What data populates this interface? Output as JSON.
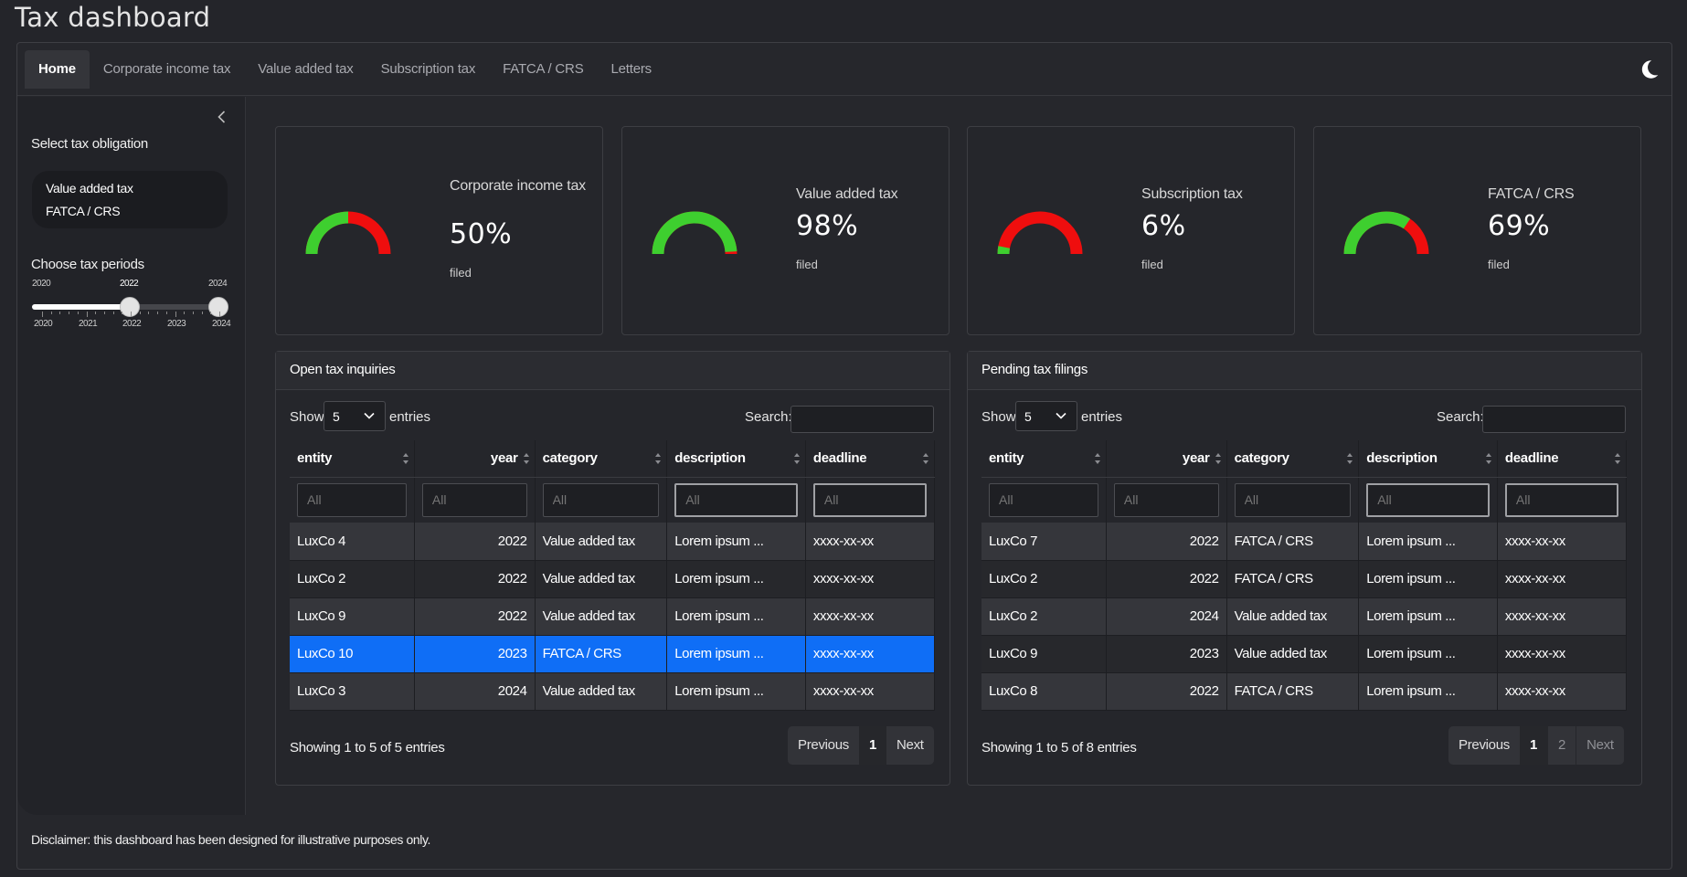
{
  "app": {
    "title": "Tax dashboard"
  },
  "nav": {
    "tabs": [
      {
        "label": "Home"
      },
      {
        "label": "Corporate income tax"
      },
      {
        "label": "Value added tax"
      },
      {
        "label": "Subscription tax"
      },
      {
        "label": "FATCA / CRS"
      },
      {
        "label": "Letters"
      }
    ],
    "active_tab": "Home",
    "theme_icon": "moon-icon"
  },
  "sidebar": {
    "collapse_icon": "chevron-left-icon",
    "obligation_label": "Select tax obligation",
    "obligations": [
      "Value added tax",
      "FATCA / CRS"
    ],
    "periods_label": "Choose tax periods",
    "slider": {
      "min": "2020",
      "max": "2024",
      "from": "2022",
      "to": "2024",
      "ticks": [
        "2020",
        "2021",
        "2022",
        "2023",
        "2024"
      ]
    }
  },
  "value_boxes": [
    {
      "title": "Corporate income tax",
      "value": "50%",
      "subtitle": "filed",
      "percent": 50
    },
    {
      "title": "Value added tax",
      "value": "98%",
      "subtitle": "filed",
      "percent": 98
    },
    {
      "title": "Subscription tax",
      "value": "6%",
      "subtitle": "filed",
      "percent": 6
    },
    {
      "title": "FATCA / CRS",
      "value": "69%",
      "subtitle": "filed",
      "percent": 69
    }
  ],
  "colors": {
    "filled": "#3ecf2f",
    "unfilled": "#ef0e0e",
    "selected_row": "#0f6ef6"
  },
  "inquiries": {
    "title": "Open tax inquiries",
    "show_label": "Show",
    "length": "5",
    "entries_label": "entries",
    "search_label": "Search:",
    "columns": [
      "entity",
      "year",
      "category",
      "description",
      "deadline"
    ],
    "filter_placeholder": "All",
    "rows": [
      [
        "LuxCo 4",
        "2022",
        "Value added tax",
        "Lorem ipsum ...",
        "xxxx-xx-xx"
      ],
      [
        "LuxCo 2",
        "2022",
        "Value added tax",
        "Lorem ipsum ...",
        "xxxx-xx-xx"
      ],
      [
        "LuxCo 9",
        "2022",
        "Value added tax",
        "Lorem ipsum ...",
        "xxxx-xx-xx"
      ],
      [
        "LuxCo 10",
        "2023",
        "FATCA / CRS",
        "Lorem ipsum ...",
        "xxxx-xx-xx"
      ],
      [
        "LuxCo 3",
        "2024",
        "Value added tax",
        "Lorem ipsum ...",
        "xxxx-xx-xx"
      ]
    ],
    "selected_row": 3,
    "info": "Showing 1 to 5 of 5 entries",
    "pagination": {
      "previous": "Previous",
      "pages": [
        "1"
      ],
      "next": "Next"
    }
  },
  "filings": {
    "title": "Pending tax filings",
    "show_label": "Show",
    "length": "5",
    "entries_label": "entries",
    "search_label": "Search:",
    "columns": [
      "entity",
      "year",
      "category",
      "description",
      "deadline"
    ],
    "filter_placeholder": "All",
    "rows": [
      [
        "LuxCo 7",
        "2022",
        "FATCA / CRS",
        "Lorem ipsum ...",
        "xxxx-xx-xx"
      ],
      [
        "LuxCo 2",
        "2022",
        "FATCA / CRS",
        "Lorem ipsum ...",
        "xxxx-xx-xx"
      ],
      [
        "LuxCo 2",
        "2024",
        "Value added tax",
        "Lorem ipsum ...",
        "xxxx-xx-xx"
      ],
      [
        "LuxCo 9",
        "2023",
        "Value added tax",
        "Lorem ipsum ...",
        "xxxx-xx-xx"
      ],
      [
        "LuxCo 8",
        "2022",
        "FATCA / CRS",
        "Lorem ipsum ...",
        "xxxx-xx-xx"
      ]
    ],
    "selected_row": -1,
    "info": "Showing 1 to 5 of 8 entries",
    "pagination": {
      "previous": "Previous",
      "pages": [
        "1",
        "2"
      ],
      "next": "Next"
    }
  },
  "footer": {
    "disclaimer": "Disclaimer: this dashboard has been designed for illustrative purposes only."
  }
}
